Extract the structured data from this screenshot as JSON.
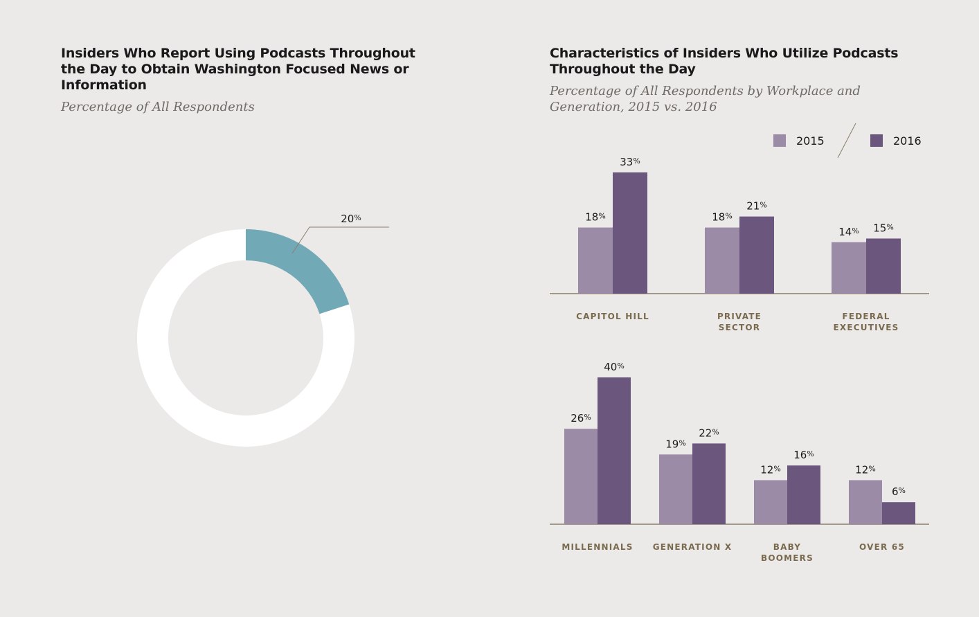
{
  "left_chart": {
    "title": "Insiders Who Report Using Podcasts Throughout the Day to Obtain Washington Focused News or Information",
    "subtitle": "Percentage of All Respondents"
  },
  "right_chart": {
    "title": "Characteristics of Insiders Who Utilize Podcasts Throughout the Day",
    "subtitle": "Percentage of All Respondents by Workplace and Generation, 2015 vs. 2016"
  },
  "legend": [
    "2015",
    "2016"
  ],
  "colors": {
    "donut_value": "#72a9b6",
    "donut_rest": "#ffffff",
    "series_2015": "#9c8ba6",
    "series_2016": "#6b567e",
    "axis": "#8a7e6e",
    "category_text": "#7a6a4e"
  },
  "chart_data": [
    {
      "type": "pie",
      "variant": "donut",
      "values": [
        20,
        80
      ],
      "labels": [
        "20%",
        ""
      ]
    },
    {
      "type": "bar",
      "categories": [
        [
          "CAPITOL HILL"
        ],
        [
          "PRIVATE",
          "SECTOR"
        ],
        [
          "FEDERAL",
          "EXECUTIVES"
        ]
      ],
      "series": [
        {
          "name": "2015",
          "values": [
            18,
            18,
            14
          ]
        },
        {
          "name": "2016",
          "values": [
            33,
            21,
            15
          ]
        }
      ],
      "ylim": [
        0,
        40
      ],
      "legend_position": "top-right"
    },
    {
      "type": "bar",
      "categories": [
        [
          "MILLENNIALS"
        ],
        [
          "GENERATION X"
        ],
        [
          "BABY",
          "BOOMERS"
        ],
        [
          "OVER 65"
        ]
      ],
      "series": [
        {
          "name": "2015",
          "values": [
            26,
            19,
            12,
            12
          ]
        },
        {
          "name": "2016",
          "values": [
            40,
            22,
            16,
            6
          ]
        }
      ],
      "ylim": [
        0,
        40
      ]
    }
  ]
}
